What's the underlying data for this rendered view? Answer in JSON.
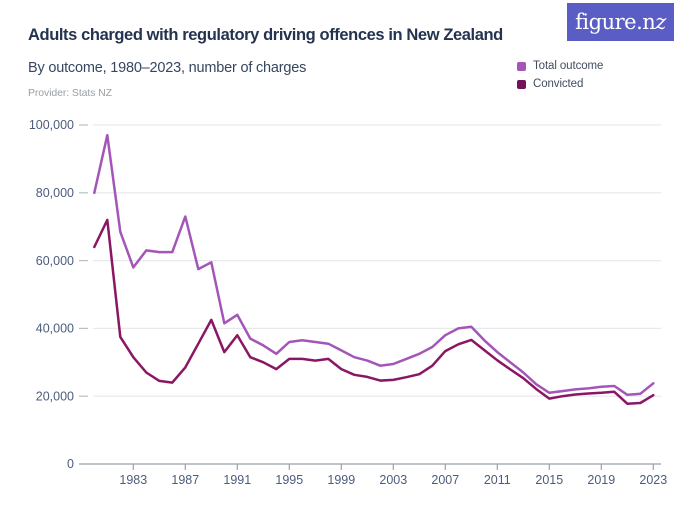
{
  "brand": {
    "logo_text_head": "figure.n",
    "logo_text_z": "z",
    "logo_bg": "#5a5ec4"
  },
  "header": {
    "title": "Adults charged with regulatory driving offences in New Zealand",
    "subtitle": "By outcome, 1980–2023, number of charges",
    "provider": "Provider: Stats NZ"
  },
  "legend": [
    {
      "label": "Total outcome",
      "color": "#a455b8"
    },
    {
      "label": "Convicted",
      "color": "#701457"
    }
  ],
  "chart_data": {
    "type": "line",
    "title": "Adults charged with regulatory driving offences in New Zealand",
    "subtitle": "By outcome, 1980–2023, number of charges",
    "xlabel": "",
    "ylabel": "",
    "grid": "horizontal",
    "legend_position": "top-right",
    "xlim": [
      1980,
      2023
    ],
    "ylim": [
      0,
      100000
    ],
    "yticks": [
      0,
      20000,
      40000,
      60000,
      80000,
      100000
    ],
    "xticks": [
      1983,
      1987,
      1991,
      1995,
      1999,
      2003,
      2007,
      2011,
      2015,
      2019,
      2023
    ],
    "x": [
      1980,
      1981,
      1982,
      1983,
      1984,
      1985,
      1986,
      1987,
      1988,
      1989,
      1990,
      1991,
      1992,
      1993,
      1994,
      1995,
      1996,
      1997,
      1998,
      1999,
      2000,
      2001,
      2002,
      2003,
      2004,
      2005,
      2006,
      2007,
      2008,
      2009,
      2010,
      2011,
      2012,
      2013,
      2014,
      2015,
      2016,
      2017,
      2018,
      2019,
      2020,
      2021,
      2022,
      2023
    ],
    "series": [
      {
        "name": "Total outcome",
        "color": "#a455b8",
        "values": [
          80000,
          97000,
          68500,
          58000,
          63000,
          62500,
          62500,
          73000,
          57500,
          59500,
          41500,
          44000,
          37000,
          35000,
          32500,
          36000,
          36500,
          36000,
          35500,
          33500,
          31500,
          30500,
          29000,
          29500,
          31000,
          32500,
          34500,
          38000,
          40000,
          40500,
          36500,
          33000,
          30000,
          27000,
          23500,
          21000,
          21500,
          22000,
          22300,
          22800,
          23000,
          20400,
          20700,
          23800
        ]
      },
      {
        "name": "Convicted",
        "color": "#8a1763",
        "values": [
          64000,
          72000,
          37500,
          31500,
          27000,
          24500,
          24000,
          28500,
          35500,
          42500,
          33000,
          38000,
          31500,
          30000,
          28000,
          31000,
          31000,
          30500,
          31000,
          28000,
          26300,
          25700,
          24600,
          24800,
          25600,
          26500,
          29000,
          33300,
          35300,
          36600,
          33600,
          30600,
          27900,
          25300,
          22100,
          19300,
          20000,
          20500,
          20800,
          21000,
          21300,
          17800,
          18000,
          20300
        ]
      }
    ],
    "axis_colors": {
      "grid": "#e8e9ec",
      "axis": "#99a0a9",
      "ytick_dash": "#b9bfc8",
      "label": "#4c5c7c"
    }
  }
}
